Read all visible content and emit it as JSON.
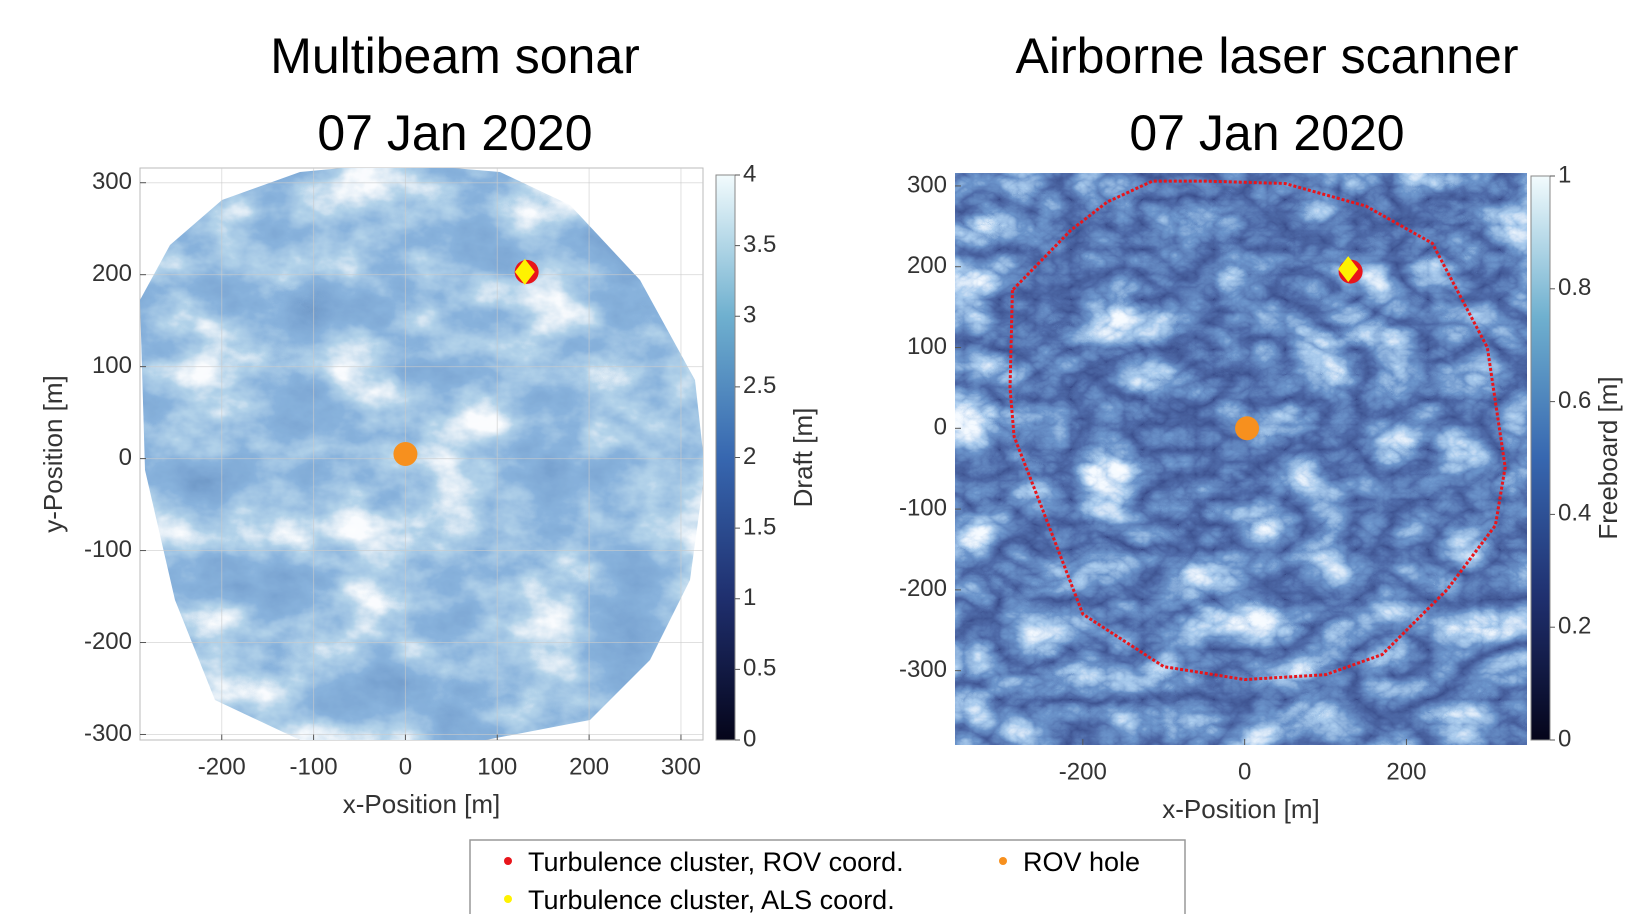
{
  "chart_data": [
    {
      "type": "scatter",
      "title": [
        "Multibeam sonar",
        "07 Jan 2020"
      ],
      "xlabel": "x-Position [m]",
      "ylabel": "y-Position [m]",
      "xlim": [
        -289,
        324
      ],
      "ylim": [
        -306,
        316
      ],
      "xticks": [
        -200,
        -100,
        0,
        100,
        200,
        300
      ],
      "yticks": [
        -300,
        -200,
        -100,
        0,
        100,
        200,
        300
      ],
      "grid": true,
      "colorbar": {
        "label": "Draft [m]",
        "clim": [
          0,
          4
        ],
        "cticks": [
          0,
          0.5,
          1,
          1.5,
          2,
          2.5,
          3,
          3.5,
          4
        ]
      },
      "series": [
        {
          "name": "Turbulence cluster, ROV coord.",
          "color": "#e8151b",
          "marker": "circle",
          "x": [
            132
          ],
          "y": [
            203
          ]
        },
        {
          "name": "Turbulence cluster, ALS coord.",
          "color": "#fff200",
          "marker": "diamond",
          "x": [
            130
          ],
          "y": [
            203
          ]
        },
        {
          "name": "ROV hole",
          "color": "#f7901e",
          "marker": "circle",
          "x": [
            0
          ],
          "y": [
            5
          ]
        }
      ]
    },
    {
      "type": "scatter",
      "title": [
        "Airborne laser scanner",
        "07 Jan 2020"
      ],
      "xlabel": "x-Position [m]",
      "xlim": [
        -358,
        349
      ],
      "ylim": [
        -392,
        316
      ],
      "xticks": [
        -200,
        0,
        200
      ],
      "yticks": [
        -300,
        -200,
        -100,
        0,
        100,
        200,
        300
      ],
      "grid": false,
      "colorbar": {
        "label": "Freeboard [m]",
        "clim": [
          0,
          1
        ],
        "cticks": [
          0,
          0.2,
          0.4,
          0.6,
          0.8,
          1
        ]
      },
      "series": [
        {
          "color": "#e8151b",
          "marker": "line",
          "x": [
            -287,
            -290,
            -285,
            -250,
            -200,
            -100,
            0,
            100,
            170,
            250,
            310,
            322,
            300,
            232,
            150,
            50,
            -50,
            -114,
            -170,
            -215
          ],
          "y": [
            171,
            50,
            -10,
            -100,
            -230,
            -295,
            -311,
            -305,
            -280,
            -200,
            -120,
            -48,
            100,
            229,
            275,
            303,
            306,
            306,
            280,
            245
          ]
        },
        {
          "color": "#e8151b",
          "marker": "circle",
          "x": [
            131
          ],
          "y": [
            194
          ]
        },
        {
          "color": "#fff200",
          "marker": "diamond",
          "x": [
            128
          ],
          "y": [
            197
          ]
        },
        {
          "color": "#f7901e",
          "marker": "circle",
          "x": [
            3
          ],
          "y": [
            0
          ]
        }
      ]
    }
  ]
}
